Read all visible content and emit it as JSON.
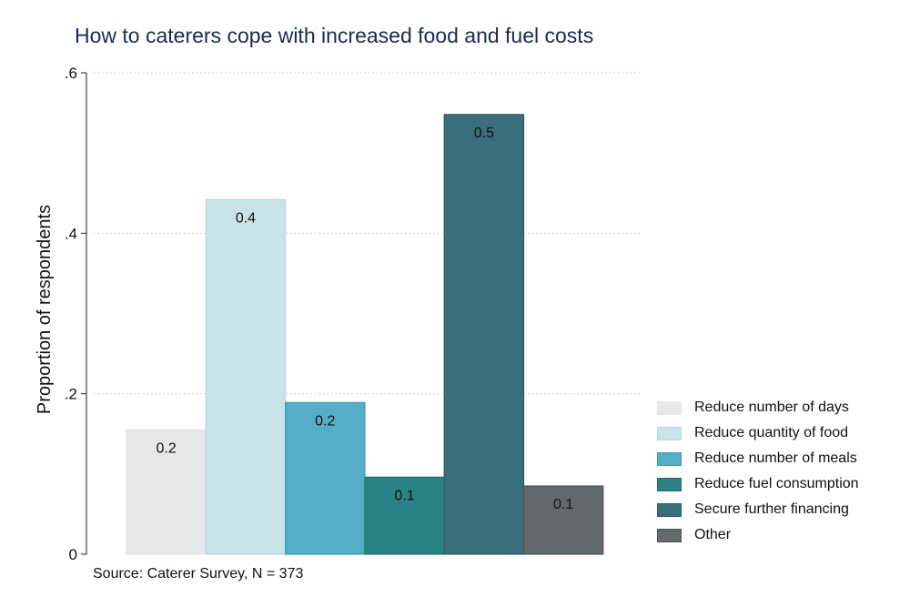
{
  "title": "How to caterers cope with increased food and fuel costs",
  "source": "Source: Caterer Survey, N = 373",
  "colors": {
    "grid": "#c8c8c8",
    "axis": "#222222"
  },
  "chart_data": {
    "type": "bar",
    "title": "How to caterers cope with increased food and fuel costs",
    "xlabel": "",
    "ylabel": "Proportion of respondents",
    "ylim": [
      0,
      0.6
    ],
    "yticks": [
      {
        "value": 0,
        "label": "0"
      },
      {
        "value": 0.2,
        "label": ".2"
      },
      {
        "value": 0.4,
        "label": ".4"
      },
      {
        "value": 0.6,
        "label": ".6"
      }
    ],
    "grid": true,
    "legend_position": "right",
    "categories": [
      "Reduce number of days",
      "Reduce quantity of food",
      "Reduce number of meals",
      "Reduce fuel consumption",
      "Secure further financing",
      "Other"
    ],
    "values": [
      0.155,
      0.442,
      0.189,
      0.096,
      0.548,
      0.085
    ],
    "data_labels": [
      "0.2",
      "0.4",
      "0.2",
      "0.1",
      "0.5",
      "0.1"
    ],
    "fill_colors": [
      "#e6e7e9",
      "#c9e4e7",
      "#56adc6",
      "#2b8284",
      "#3a6e7b",
      "#636a6c"
    ],
    "edge_colors": [
      "#e6e7e9",
      "#b6d8dc",
      "#3f9bb5",
      "#1f6f71",
      "#2c5a66",
      "#4d5557"
    ]
  },
  "source_note": "Source: Caterer Survey, N = 373"
}
